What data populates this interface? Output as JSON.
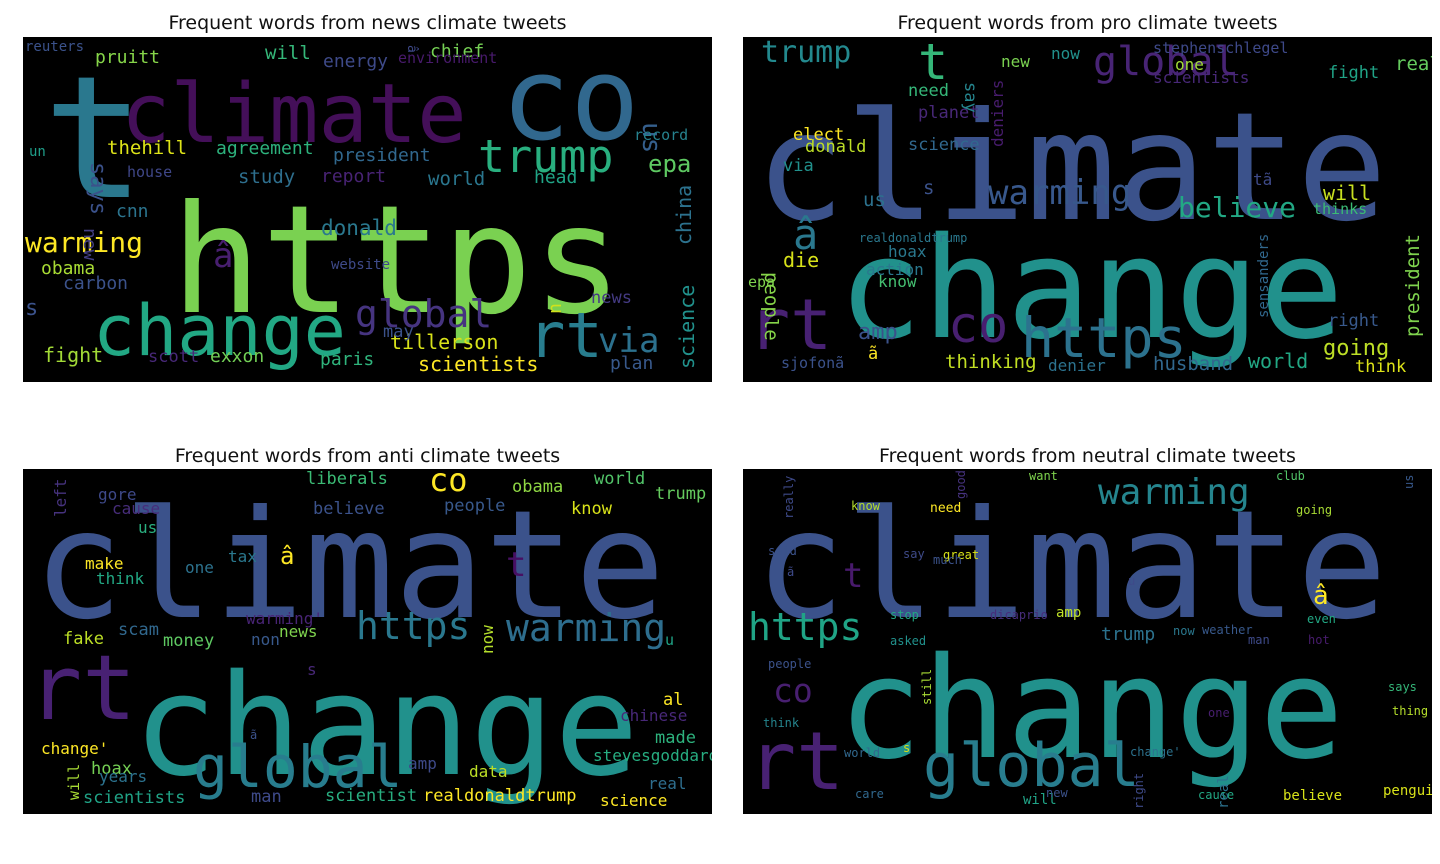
{
  "panels": [
    {
      "title": "Frequent words from news climate tweets",
      "words": [
        {
          "text": "https",
          "color": "#7ad151"
        },
        {
          "text": "co",
          "color": "#31688e"
        },
        {
          "text": "climate",
          "color": "#440f59"
        },
        {
          "text": "t",
          "color": "#2a788e"
        },
        {
          "text": "change",
          "color": "#22a884"
        },
        {
          "text": "trump",
          "color": "#29af7f"
        },
        {
          "text": "rt",
          "color": "#287d8e"
        },
        {
          "text": "global",
          "color": "#463480"
        },
        {
          "text": "warming",
          "color": "#fde725"
        },
        {
          "text": "via",
          "color": "#2c718e"
        },
        {
          "text": "â",
          "color": "#481f70"
        },
        {
          "text": "epa",
          "color": "#5ec962"
        },
        {
          "text": "donald",
          "color": "#2a788e"
        },
        {
          "text": "tillerson",
          "color": "#d8e219"
        },
        {
          "text": "scientists",
          "color": "#fde725"
        },
        {
          "text": "president",
          "color": "#31688e"
        },
        {
          "text": "us",
          "color": "#355f8d"
        },
        {
          "text": "says",
          "color": "#3b528b"
        },
        {
          "text": "thehill",
          "color": "#dde318"
        },
        {
          "text": "agreement",
          "color": "#2db27d"
        },
        {
          "text": "will",
          "color": "#35b779"
        },
        {
          "text": "chief",
          "color": "#75d054"
        },
        {
          "text": "energy",
          "color": "#3e4a89"
        },
        {
          "text": "pruitt",
          "color": "#86d549"
        },
        {
          "text": "reuters",
          "color": "#3b528b"
        },
        {
          "text": "environment",
          "color": "#481a6c"
        },
        {
          "text": "â",
          "color": "#3e4989"
        },
        {
          "text": "record",
          "color": "#26828e"
        },
        {
          "text": "head",
          "color": "#20a486"
        },
        {
          "text": "china",
          "color": "#2c728e"
        },
        {
          "text": "world",
          "color": "#2a768e"
        },
        {
          "text": "study",
          "color": "#2e6f8e"
        },
        {
          "text": "report",
          "color": "#482374"
        },
        {
          "text": "house",
          "color": "#3f4788"
        },
        {
          "text": "un",
          "color": "#1f9e89"
        },
        {
          "text": "new",
          "color": "#433e85"
        },
        {
          "text": "cnn",
          "color": "#2b748e"
        },
        {
          "text": "obama",
          "color": "#a8db34"
        },
        {
          "text": "carbon",
          "color": "#3b528b"
        },
        {
          "text": "website",
          "color": "#3e4a89"
        },
        {
          "text": "s",
          "color": "#3b528b"
        },
        {
          "text": "u",
          "color": "#d0e11c"
        },
        {
          "text": "news",
          "color": "#443a83"
        },
        {
          "text": "science",
          "color": "#21918c"
        },
        {
          "text": "may",
          "color": "#3b528b"
        },
        {
          "text": "fight",
          "color": "#a2da37"
        },
        {
          "text": "scott",
          "color": "#482878"
        },
        {
          "text": "exxon",
          "color": "#73d056"
        },
        {
          "text": "paris",
          "color": "#2fb47c"
        },
        {
          "text": "plan",
          "color": "#38598c"
        }
      ]
    },
    {
      "title": "Frequent words from pro climate tweets",
      "words": [
        {
          "text": "climate",
          "color": "#3b528b"
        },
        {
          "text": "change",
          "color": "#21918c"
        },
        {
          "text": "rt",
          "color": "#482173"
        },
        {
          "text": "https",
          "color": "#2c728e"
        },
        {
          "text": "co",
          "color": "#481f70"
        },
        {
          "text": "t",
          "color": "#35b779"
        },
        {
          "text": "global",
          "color": "#482475"
        },
        {
          "text": "trump",
          "color": "#23898e"
        },
        {
          "text": "warming",
          "color": "#38588c"
        },
        {
          "text": "believe",
          "color": "#22a884"
        },
        {
          "text": "â",
          "color": "#2a788e"
        },
        {
          "text": "amp",
          "color": "#3b528b"
        },
        {
          "text": "going",
          "color": "#bddf26"
        },
        {
          "text": "world",
          "color": "#22a884"
        },
        {
          "text": "husband",
          "color": "#31688e"
        },
        {
          "text": "thinking",
          "color": "#c2df23"
        },
        {
          "text": "denier",
          "color": "#2c728e"
        },
        {
          "text": "will",
          "color": "#c8e020"
        },
        {
          "text": "president",
          "color": "#7fd34e"
        },
        {
          "text": "people",
          "color": "#86d549"
        },
        {
          "text": "die",
          "color": "#d8e219"
        },
        {
          "text": "elect",
          "color": "#fde725"
        },
        {
          "text": "donald",
          "color": "#bddf26"
        },
        {
          "text": "science",
          "color": "#31688e"
        },
        {
          "text": "need",
          "color": "#35b779"
        },
        {
          "text": "planet",
          "color": "#482878"
        },
        {
          "text": "deniers",
          "color": "#481c6e"
        },
        {
          "text": "say",
          "color": "#25858e"
        },
        {
          "text": "new",
          "color": "#7ad151"
        },
        {
          "text": "now",
          "color": "#21918c"
        },
        {
          "text": "stephenschlegel",
          "color": "#3e4989"
        },
        {
          "text": "scientists",
          "color": "#482878"
        },
        {
          "text": "one",
          "color": "#a0da39"
        },
        {
          "text": "real",
          "color": "#65cb5e"
        },
        {
          "text": "fight",
          "color": "#20a386"
        },
        {
          "text": "via",
          "color": "#21918c"
        },
        {
          "text": "us",
          "color": "#2c728e"
        },
        {
          "text": "s",
          "color": "#3b528b"
        },
        {
          "text": "tã",
          "color": "#3e4a89"
        },
        {
          "text": "thinks",
          "color": "#3bbb75"
        },
        {
          "text": "realdonaldtrump",
          "color": "#2a788e"
        },
        {
          "text": "hoax",
          "color": "#2a788e"
        },
        {
          "text": "action",
          "color": "#2a788e"
        },
        {
          "text": "know",
          "color": "#44bf70"
        },
        {
          "text": "epa",
          "color": "#7fd34e"
        },
        {
          "text": "sensanders",
          "color": "#31688e"
        },
        {
          "text": "right",
          "color": "#38598c"
        },
        {
          "text": "think",
          "color": "#dde318"
        },
        {
          "text": "sjofonã",
          "color": "#3b528b"
        },
        {
          "text": "ã",
          "color": "#fde725"
        }
      ]
    },
    {
      "title": "Frequent words from anti climate tweets",
      "words": [
        {
          "text": "climate",
          "color": "#3b528b"
        },
        {
          "text": "change",
          "color": "#21918c"
        },
        {
          "text": "rt",
          "color": "#482173"
        },
        {
          "text": "global",
          "color": "#287d8e"
        },
        {
          "text": "https",
          "color": "#2a788e"
        },
        {
          "text": "warming",
          "color": "#2e6e8e"
        },
        {
          "text": "co",
          "color": "#fde725"
        },
        {
          "text": "t",
          "color": "#471063"
        },
        {
          "text": "â",
          "color": "#fde725"
        },
        {
          "text": "liberals",
          "color": "#3bbb75"
        },
        {
          "text": "believe",
          "color": "#3b528b"
        },
        {
          "text": "people",
          "color": "#38598c"
        },
        {
          "text": "obama",
          "color": "#8fd744"
        },
        {
          "text": "world",
          "color": "#52c569"
        },
        {
          "text": "trump",
          "color": "#65cb5e"
        },
        {
          "text": "know",
          "color": "#d8e219"
        },
        {
          "text": "left",
          "color": "#46327e"
        },
        {
          "text": "gore",
          "color": "#3e4989"
        },
        {
          "text": "cause",
          "color": "#472d7b"
        },
        {
          "text": "us",
          "color": "#29af7f"
        },
        {
          "text": "make",
          "color": "#fde725"
        },
        {
          "text": "think",
          "color": "#22a884"
        },
        {
          "text": "one",
          "color": "#2c728e"
        },
        {
          "text": "tax",
          "color": "#2a788e"
        },
        {
          "text": "warming'",
          "color": "#482475"
        },
        {
          "text": "news",
          "color": "#7fd34e"
        },
        {
          "text": "non",
          "color": "#38598c"
        },
        {
          "text": "now",
          "color": "#b5de2b"
        },
        {
          "text": "fake",
          "color": "#bddf26"
        },
        {
          "text": "scam",
          "color": "#31688e"
        },
        {
          "text": "money",
          "color": "#5ec962"
        },
        {
          "text": "s",
          "color": "#482878"
        },
        {
          "text": "u",
          "color": "#20a386"
        },
        {
          "text": "al",
          "color": "#fde725"
        },
        {
          "text": "chinese",
          "color": "#482878"
        },
        {
          "text": "made",
          "color": "#2db27d"
        },
        {
          "text": "stevesgoddard",
          "color": "#27ad81"
        },
        {
          "text": "change'",
          "color": "#fde725"
        },
        {
          "text": "ã",
          "color": "#3b528b"
        },
        {
          "text": "will",
          "color": "#a8db34"
        },
        {
          "text": "hoax",
          "color": "#75d054"
        },
        {
          "text": "years",
          "color": "#2c728e"
        },
        {
          "text": "amp",
          "color": "#3e4a89"
        },
        {
          "text": "data",
          "color": "#bddf26"
        },
        {
          "text": "scientists",
          "color": "#20a386"
        },
        {
          "text": "man",
          "color": "#3e4a89"
        },
        {
          "text": "scientist",
          "color": "#28ae80"
        },
        {
          "text": "realdonaldtrump",
          "color": "#fde725"
        },
        {
          "text": "real",
          "color": "#2e6e8e"
        },
        {
          "text": "science",
          "color": "#fde725"
        }
      ]
    },
    {
      "title": "Frequent words from neutral climate tweets",
      "words": [
        {
          "text": "climate",
          "color": "#3b528b"
        },
        {
          "text": "change",
          "color": "#21918c"
        },
        {
          "text": "rt",
          "color": "#482173"
        },
        {
          "text": "global",
          "color": "#287d8e"
        },
        {
          "text": "warming",
          "color": "#25858e"
        },
        {
          "text": "https",
          "color": "#20a486"
        },
        {
          "text": "co",
          "color": "#481f70"
        },
        {
          "text": "t",
          "color": "#481a6c"
        },
        {
          "text": "â",
          "color": "#fde725"
        },
        {
          "text": "trump",
          "color": "#2c728e"
        },
        {
          "text": "really",
          "color": "#3e4a89"
        },
        {
          "text": "good",
          "color": "#46327e"
        },
        {
          "text": "want",
          "color": "#7fd34e"
        },
        {
          "text": "club",
          "color": "#52c569"
        },
        {
          "text": "us",
          "color": "#38598c"
        },
        {
          "text": "know",
          "color": "#b5de2b"
        },
        {
          "text": "need",
          "color": "#fde725"
        },
        {
          "text": "going",
          "color": "#a8db34"
        },
        {
          "text": "said",
          "color": "#3b528b"
        },
        {
          "text": "say",
          "color": "#3e4a89"
        },
        {
          "text": "great",
          "color": "#d8e219"
        },
        {
          "text": "much",
          "color": "#3b528b"
        },
        {
          "text": "ã",
          "color": "#3e4a89"
        },
        {
          "text": "u",
          "color": "#3e4a89"
        },
        {
          "text": "stop",
          "color": "#22a884"
        },
        {
          "text": "dicaprio",
          "color": "#472d7b"
        },
        {
          "text": "amp",
          "color": "#bddf26"
        },
        {
          "text": "now",
          "color": "#2a788e"
        },
        {
          "text": "weather",
          "color": "#38598c"
        },
        {
          "text": "even",
          "color": "#22a884"
        },
        {
          "text": "man",
          "color": "#3e4a89"
        },
        {
          "text": "hot",
          "color": "#481c6e"
        },
        {
          "text": "asked",
          "color": "#21918c"
        },
        {
          "text": "people",
          "color": "#3b528b"
        },
        {
          "text": "says",
          "color": "#35b779"
        },
        {
          "text": "still",
          "color": "#a8db34"
        },
        {
          "text": "think",
          "color": "#25858e"
        },
        {
          "text": "one",
          "color": "#481f70"
        },
        {
          "text": "thing",
          "color": "#b5de2b"
        },
        {
          "text": "world",
          "color": "#31688e"
        },
        {
          "text": "s",
          "color": "#d8e219"
        },
        {
          "text": "change'",
          "color": "#2c728e"
        },
        {
          "text": "care",
          "color": "#31688e"
        },
        {
          "text": "will",
          "color": "#20a386"
        },
        {
          "text": "new",
          "color": "#3b528b"
        },
        {
          "text": "right",
          "color": "#3e4a89"
        },
        {
          "text": "cause",
          "color": "#22a884"
        },
        {
          "text": "believe",
          "color": "#d8e219"
        },
        {
          "text": "real",
          "color": "#2c728e"
        },
        {
          "text": "penguin",
          "color": "#d8e219"
        }
      ]
    }
  ]
}
